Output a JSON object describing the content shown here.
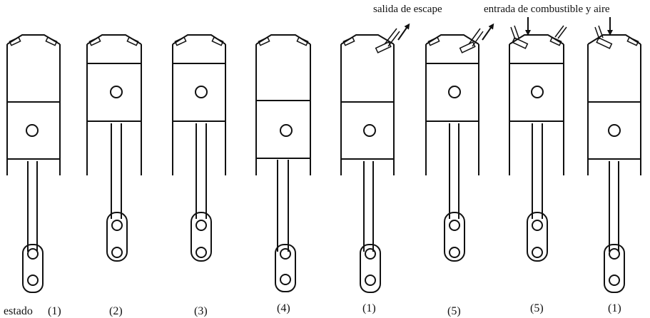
{
  "figure": {
    "state_prefix": "estado",
    "annotations": {
      "exhaust": "salida de escape",
      "intake": "entrada de combustible y aire"
    },
    "states": [
      "(1)",
      "(2)",
      "(3)",
      "(4)",
      "(1)",
      "(5)",
      "(5)",
      "(1)"
    ]
  }
}
